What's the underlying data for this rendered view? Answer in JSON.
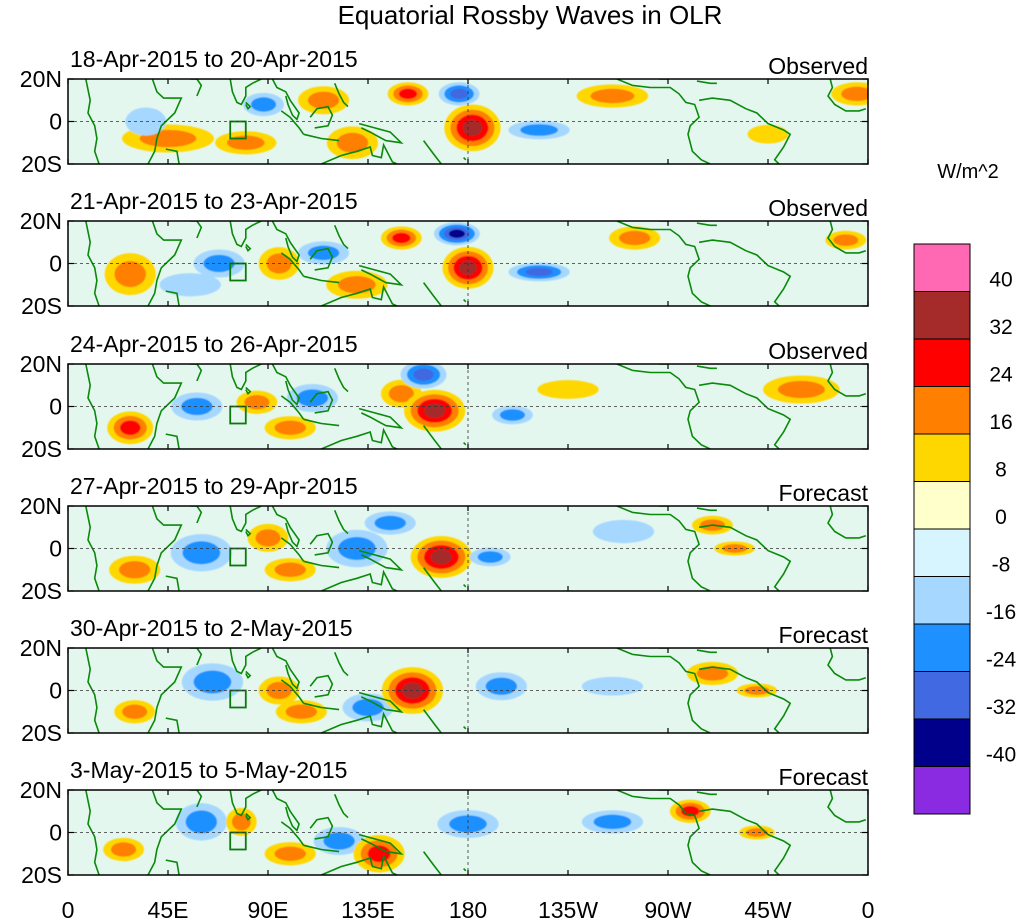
{
  "chart_data": {
    "type": "heatmap",
    "title": "Equatorial Rossby Waves in OLR",
    "variable": "OLR anomaly",
    "units": "W/m^2",
    "x_tick_labels": [
      "0",
      "45E",
      "90E",
      "135E",
      "180",
      "135W",
      "90W",
      "45W",
      "0"
    ],
    "x_ticks_degE": [
      0,
      45,
      90,
      135,
      180,
      225,
      270,
      315,
      360
    ],
    "y_tick_labels": [
      "20N",
      "0",
      "20S"
    ],
    "y_ticks_lat": [
      20,
      0,
      -20
    ],
    "lat_range": [
      -20,
      20
    ],
    "lon_range": [
      0,
      360
    ],
    "colorbar": {
      "labels": [
        "40",
        "32",
        "24",
        "16",
        "8",
        "0",
        "-8",
        "-16",
        "-24",
        "-32",
        "-40"
      ],
      "colors": [
        "#ff69b4",
        "#a52a2a",
        "#ff0000",
        "#ff7f00",
        "#ffd700",
        "#ffffcc",
        "#d6f5ff",
        "#a6d8ff",
        "#1e90ff",
        "#4169e1",
        "#00008b",
        "#8a2be2"
      ]
    },
    "panels": [
      {
        "date_range": "18-Apr-2015 to 20-Apr-2015",
        "status": "Observed",
        "features": [
          {
            "lon": 45,
            "lat": -8,
            "sign": 1,
            "amp": 20,
            "rlon": 18,
            "rlat": 6
          },
          {
            "lon": 80,
            "lat": -10,
            "sign": 1,
            "amp": 16,
            "rlon": 12,
            "rlat": 5
          },
          {
            "lon": 115,
            "lat": 10,
            "sign": 1,
            "amp": 20,
            "rlon": 10,
            "rlat": 6
          },
          {
            "lon": 128,
            "lat": -10,
            "sign": 1,
            "amp": 22,
            "rlon": 10,
            "rlat": 7
          },
          {
            "lon": 88,
            "lat": 8,
            "sign": -1,
            "amp": 16,
            "rlon": 8,
            "rlat": 5
          },
          {
            "lon": 35,
            "lat": 0,
            "sign": -1,
            "amp": 14,
            "rlon": 8,
            "rlat": 6
          },
          {
            "lon": 153,
            "lat": 13,
            "sign": 1,
            "amp": 30,
            "rlon": 8,
            "rlat": 5
          },
          {
            "lon": 176,
            "lat": 13,
            "sign": -1,
            "amp": 30,
            "rlon": 8,
            "rlat": 5
          },
          {
            "lon": 182,
            "lat": -3,
            "sign": 1,
            "amp": 34,
            "rlon": 11,
            "rlat": 10
          },
          {
            "lon": 212,
            "lat": -4,
            "sign": -1,
            "amp": 22,
            "rlon": 12,
            "rlat": 4
          },
          {
            "lon": 245,
            "lat": 12,
            "sign": 1,
            "amp": 16,
            "rlon": 14,
            "rlat": 5
          },
          {
            "lon": 315,
            "lat": -6,
            "sign": 1,
            "amp": 12,
            "rlon": 8,
            "rlat": 4
          },
          {
            "lon": 355,
            "lat": 13,
            "sign": 1,
            "amp": 18,
            "rlon": 10,
            "rlat": 5
          }
        ]
      },
      {
        "date_range": "21-Apr-2015 to 23-Apr-2015",
        "status": "Observed",
        "features": [
          {
            "lon": 28,
            "lat": -5,
            "sign": 1,
            "amp": 22,
            "rlon": 10,
            "rlat": 9
          },
          {
            "lon": 55,
            "lat": -10,
            "sign": -1,
            "amp": 14,
            "rlon": 12,
            "rlat": 5
          },
          {
            "lon": 68,
            "lat": 0,
            "sign": -1,
            "amp": 18,
            "rlon": 10,
            "rlat": 6
          },
          {
            "lon": 95,
            "lat": 0,
            "sign": 1,
            "amp": 16,
            "rlon": 8,
            "rlat": 7
          },
          {
            "lon": 115,
            "lat": 5,
            "sign": -1,
            "amp": 16,
            "rlon": 10,
            "rlat": 5
          },
          {
            "lon": 130,
            "lat": -10,
            "sign": 1,
            "amp": 18,
            "rlon": 12,
            "rlat": 6
          },
          {
            "lon": 150,
            "lat": 12,
            "sign": 1,
            "amp": 28,
            "rlon": 8,
            "rlat": 5
          },
          {
            "lon": 175,
            "lat": 14,
            "sign": -1,
            "amp": 32,
            "rlon": 9,
            "rlat": 5
          },
          {
            "lon": 180,
            "lat": -2,
            "sign": 1,
            "amp": 34,
            "rlon": 10,
            "rlat": 9
          },
          {
            "lon": 212,
            "lat": -4,
            "sign": -1,
            "amp": 24,
            "rlon": 12,
            "rlat": 4
          },
          {
            "lon": 255,
            "lat": 12,
            "sign": 1,
            "amp": 16,
            "rlon": 10,
            "rlat": 5
          },
          {
            "lon": 350,
            "lat": 11,
            "sign": 1,
            "amp": 16,
            "rlon": 8,
            "rlat": 4
          }
        ]
      },
      {
        "date_range": "24-Apr-2015 to 26-Apr-2015",
        "status": "Observed",
        "features": [
          {
            "lon": 28,
            "lat": -10,
            "sign": 1,
            "amp": 24,
            "rlon": 9,
            "rlat": 7
          },
          {
            "lon": 58,
            "lat": 0,
            "sign": -1,
            "amp": 20,
            "rlon": 10,
            "rlat": 6
          },
          {
            "lon": 85,
            "lat": 2,
            "sign": 1,
            "amp": 20,
            "rlon": 8,
            "rlat": 5
          },
          {
            "lon": 100,
            "lat": -10,
            "sign": 1,
            "amp": 16,
            "rlon": 10,
            "rlat": 5
          },
          {
            "lon": 110,
            "lat": 4,
            "sign": -1,
            "amp": 18,
            "rlon": 10,
            "rlat": 6
          },
          {
            "lon": 150,
            "lat": 6,
            "sign": 1,
            "amp": 18,
            "rlon": 8,
            "rlat": 6
          },
          {
            "lon": 160,
            "lat": 15,
            "sign": -1,
            "amp": 30,
            "rlon": 9,
            "rlat": 6
          },
          {
            "lon": 165,
            "lat": -2,
            "sign": 1,
            "amp": 36,
            "rlon": 12,
            "rlat": 9
          },
          {
            "lon": 200,
            "lat": -4,
            "sign": -1,
            "amp": 22,
            "rlon": 8,
            "rlat": 4
          },
          {
            "lon": 225,
            "lat": 8,
            "sign": 1,
            "amp": 12,
            "rlon": 12,
            "rlat": 4
          },
          {
            "lon": 330,
            "lat": 8,
            "sign": 1,
            "amp": 16,
            "rlon": 15,
            "rlat": 6
          }
        ]
      },
      {
        "date_range": "27-Apr-2015 to 29-Apr-2015",
        "status": "Forecast",
        "features": [
          {
            "lon": 30,
            "lat": -10,
            "sign": 1,
            "amp": 20,
            "rlon": 10,
            "rlat": 6
          },
          {
            "lon": 60,
            "lat": -2,
            "sign": -1,
            "amp": 18,
            "rlon": 12,
            "rlat": 8
          },
          {
            "lon": 90,
            "lat": 5,
            "sign": 1,
            "amp": 20,
            "rlon": 8,
            "rlat": 6
          },
          {
            "lon": 100,
            "lat": -10,
            "sign": 1,
            "amp": 16,
            "rlon": 10,
            "rlat": 5
          },
          {
            "lon": 130,
            "lat": 0,
            "sign": -1,
            "amp": 18,
            "rlon": 12,
            "rlat": 8
          },
          {
            "lon": 145,
            "lat": 12,
            "sign": -1,
            "amp": 22,
            "rlon": 10,
            "rlat": 5
          },
          {
            "lon": 168,
            "lat": -4,
            "sign": 1,
            "amp": 36,
            "rlon": 12,
            "rlat": 9
          },
          {
            "lon": 190,
            "lat": -4,
            "sign": -1,
            "amp": 22,
            "rlon": 8,
            "rlat": 4
          },
          {
            "lon": 250,
            "lat": 8,
            "sign": -1,
            "amp": 14,
            "rlon": 12,
            "rlat": 5
          },
          {
            "lon": 290,
            "lat": 11,
            "sign": 1,
            "amp": 20,
            "rlon": 8,
            "rlat": 4
          },
          {
            "lon": 300,
            "lat": 0,
            "sign": 1,
            "amp": 18,
            "rlon": 8,
            "rlat": 3
          }
        ]
      },
      {
        "date_range": "30-Apr-2015 to 2-May-2015",
        "status": "Forecast",
        "features": [
          {
            "lon": 30,
            "lat": -10,
            "sign": 1,
            "amp": 18,
            "rlon": 8,
            "rlat": 5
          },
          {
            "lon": 65,
            "lat": 4,
            "sign": -1,
            "amp": 20,
            "rlon": 12,
            "rlat": 8
          },
          {
            "lon": 95,
            "lat": 0,
            "sign": 1,
            "amp": 16,
            "rlon": 8,
            "rlat": 6
          },
          {
            "lon": 105,
            "lat": -10,
            "sign": 1,
            "amp": 16,
            "rlon": 10,
            "rlat": 5
          },
          {
            "lon": 135,
            "lat": -8,
            "sign": -1,
            "amp": 20,
            "rlon": 10,
            "rlat": 6
          },
          {
            "lon": 155,
            "lat": 0,
            "sign": 1,
            "amp": 34,
            "rlon": 12,
            "rlat": 10
          },
          {
            "lon": 195,
            "lat": 2,
            "sign": -1,
            "amp": 20,
            "rlon": 10,
            "rlat": 6
          },
          {
            "lon": 245,
            "lat": 2,
            "sign": -1,
            "amp": 14,
            "rlon": 12,
            "rlat": 4
          },
          {
            "lon": 290,
            "lat": 8,
            "sign": 1,
            "amp": 20,
            "rlon": 10,
            "rlat": 5
          },
          {
            "lon": 310,
            "lat": 0,
            "sign": 1,
            "amp": 18,
            "rlon": 8,
            "rlat": 3
          }
        ]
      },
      {
        "date_range": "3-May-2015 to 5-May-2015",
        "status": "Forecast",
        "features": [
          {
            "lon": 25,
            "lat": -8,
            "sign": 1,
            "amp": 16,
            "rlon": 8,
            "rlat": 5
          },
          {
            "lon": 60,
            "lat": 5,
            "sign": -1,
            "amp": 18,
            "rlon": 10,
            "rlat": 8
          },
          {
            "lon": 78,
            "lat": 5,
            "sign": 1,
            "amp": 18,
            "rlon": 6,
            "rlat": 6
          },
          {
            "lon": 100,
            "lat": -10,
            "sign": 1,
            "amp": 16,
            "rlon": 10,
            "rlat": 5
          },
          {
            "lon": 122,
            "lat": -4,
            "sign": -1,
            "amp": 18,
            "rlon": 10,
            "rlat": 6
          },
          {
            "lon": 140,
            "lat": -10,
            "sign": 1,
            "amp": 30,
            "rlon": 10,
            "rlat": 8
          },
          {
            "lon": 180,
            "lat": 4,
            "sign": -1,
            "amp": 16,
            "rlon": 12,
            "rlat": 6
          },
          {
            "lon": 245,
            "lat": 5,
            "sign": -1,
            "amp": 16,
            "rlon": 12,
            "rlat": 5
          },
          {
            "lon": 280,
            "lat": 10,
            "sign": 1,
            "amp": 28,
            "rlon": 8,
            "rlat": 5
          },
          {
            "lon": 310,
            "lat": 0,
            "sign": 1,
            "amp": 18,
            "rlon": 7,
            "rlat": 3
          }
        ]
      }
    ]
  }
}
